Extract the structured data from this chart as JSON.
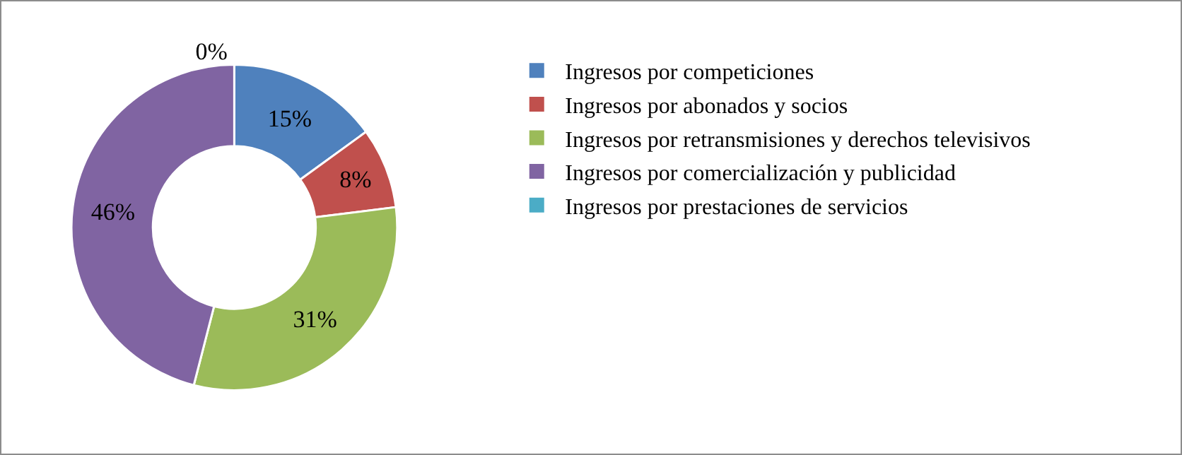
{
  "chart_data": {
    "type": "donut",
    "categories": [
      "Ingresos por competiciones",
      "Ingresos por abonados y socios",
      "Ingresos por retransmisiones y derechos televisivos",
      "Ingresos por comercialización y publicidad",
      "Ingresos por prestaciones de servicios"
    ],
    "values": [
      15,
      8,
      31,
      46,
      0
    ],
    "colors": [
      "#4f81bd",
      "#c0504d",
      "#9bbb59",
      "#8064a2",
      "#4bacc6"
    ],
    "value_labels": [
      "15%",
      "8%",
      "31%",
      "46%",
      "0%"
    ],
    "legend": "right"
  }
}
